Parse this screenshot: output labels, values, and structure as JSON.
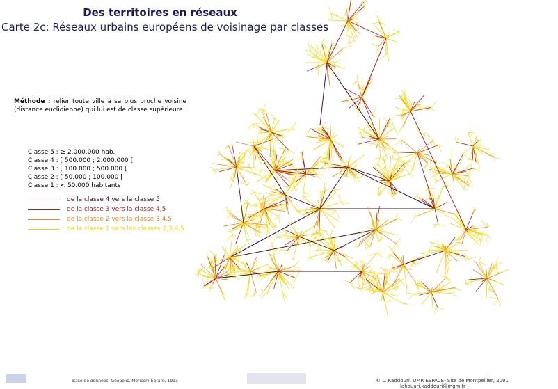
{
  "header": {
    "title": "Des territoires en réseaux",
    "subtitle": "Carte 2c: Réseaux urbains européens de voisinage par classes"
  },
  "method": {
    "label": "Méthode :",
    "text": "relier toute ville à sa plus proche voisine (distance euclidienne) qui lui est de classe supérieure."
  },
  "classes": [
    "Classe 5 : ≥ 2.000.000 hab.",
    "Classe 4 : [ 500.000 ; 2.000.000 [",
    "Classe 3 : [ 100.000 ; 500.000 [",
    "Classe 2 : [ 50.000 ; 100.000 [",
    "Classe 1 : < 50.000 habitants"
  ],
  "legend": [
    {
      "label": "de la classe 4 vers la classe 5",
      "color": "#4a0a1e"
    },
    {
      "label": "de la classe 3 vers la classe 4,5",
      "color": "#b01818"
    },
    {
      "label": "de la classe 2 vers la classe 3,4,5",
      "color": "#f08020"
    },
    {
      "label": "de la classe 1 vers les classes 2,3,4,5",
      "color": "#f8d800"
    }
  ],
  "footer": {
    "source": "Base de données: Géopolis, Moriconi-Ébrard, 1993",
    "credit": "© L. Kaddouri, UMR ESPACE- Site de Montpellier, 2001",
    "email": "lahouari.kaddouri@mgm.fr"
  }
}
